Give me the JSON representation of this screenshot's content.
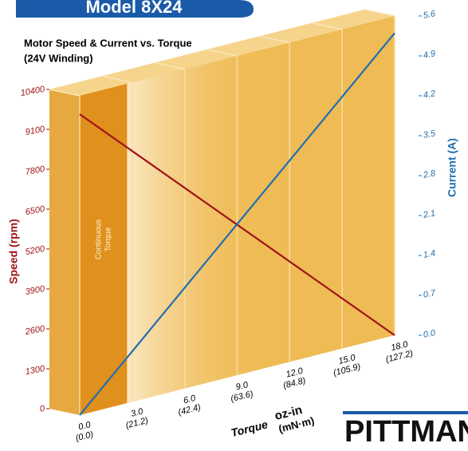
{
  "header": {
    "model": "Model 8X24"
  },
  "logo": "PITTMAN",
  "chart_data": {
    "type": "line",
    "title": "Motor Speed & Current vs. Torque",
    "subtitle": "(24V Winding)",
    "annotation": [
      "Continuous",
      "Torque"
    ],
    "continuous_torque": 2.7,
    "ylabel": "Speed (rpm)",
    "y2label": "Current (A)",
    "xlabel": "Torque",
    "xunit": "oz-in",
    "xunit_metric": "(mN·m)",
    "x": [
      0,
      18
    ],
    "xlim": [
      0,
      18
    ],
    "xticks": [
      {
        "value": 0,
        "label": "0.0"
      },
      {
        "value": 3,
        "label": "3.0"
      },
      {
        "value": 6,
        "label": "6.0"
      },
      {
        "value": 9,
        "label": "9.0"
      },
      {
        "value": 12,
        "label": "12.0"
      },
      {
        "value": 15,
        "label": "15.0"
      },
      {
        "value": 18,
        "label": "18.0"
      }
    ],
    "xticks_metric": [
      "(0.0)",
      "(21.2)",
      "(42.4)",
      "(63.6)",
      "(84.8)",
      "(105.9)",
      "(127.2)"
    ],
    "ylim": [
      0,
      10400
    ],
    "yticks": [
      0,
      1300,
      2600,
      3900,
      5200,
      6500,
      7800,
      9100,
      10400
    ],
    "y2lim": [
      0,
      5.6
    ],
    "y2ticks": [
      {
        "value": 0,
        "label": "0.0"
      },
      0.7,
      1.4,
      2.1,
      2.8,
      3.5,
      4.2,
      4.9,
      5.6
    ],
    "series": [
      {
        "color": "#a0141a",
        "values": [
          9800,
          0
        ]
      },
      {
        "color": "#1f6fb0",
        "values": [
          0,
          5.3
        ],
        "axis": "y2"
      }
    ]
  }
}
